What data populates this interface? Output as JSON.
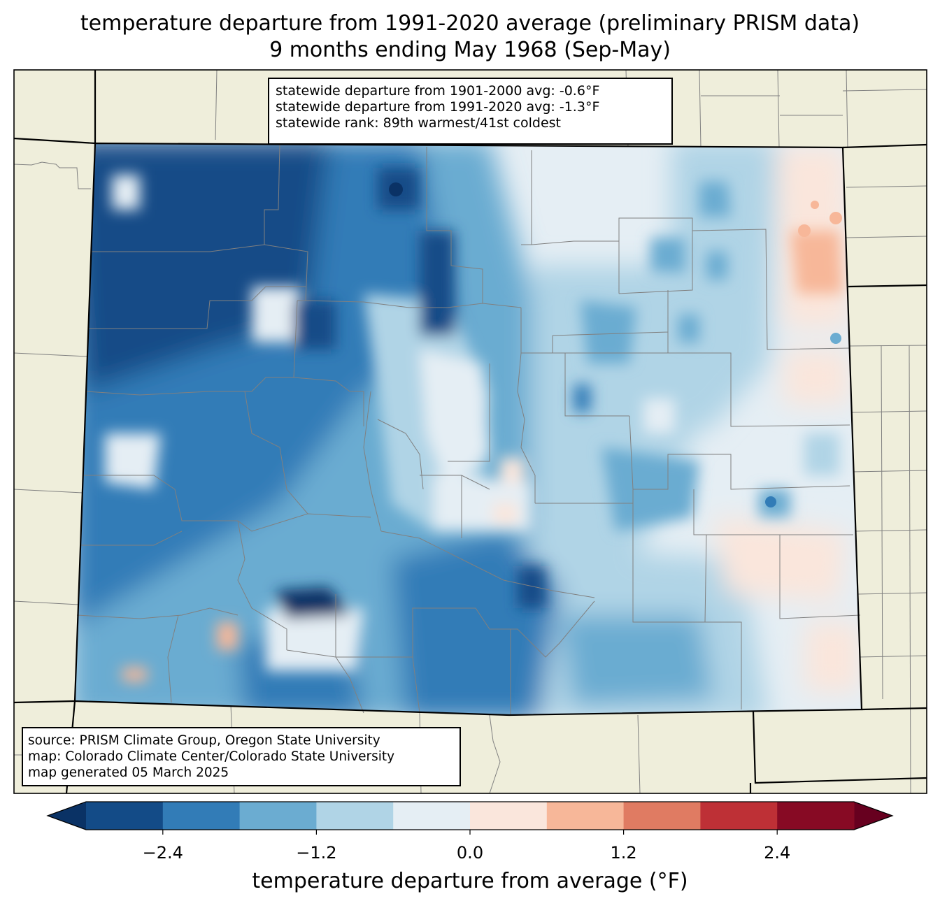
{
  "title": {
    "line1": "temperature departure from 1991-2020 average (preliminary PRISM data)",
    "line2": "9 months ending May 1968 (Sep-May)"
  },
  "stats_box": {
    "line1": "statewide departure from 1901-2000 avg: -0.6°F",
    "line2": "statewide departure from 1991-2020 avg: -1.3°F",
    "line3": "statewide rank: 89th warmest/41st coldest"
  },
  "source_box": {
    "line1": "source: PRISM Climate Group, Oregon State University",
    "line2": "map: Colorado Climate Center/Colorado State University",
    "line3": "map generated 05 March 2025"
  },
  "colorbar": {
    "label": "temperature departure from average (°F)",
    "ticks": [
      "−2.4",
      "−1.2",
      "0.0",
      "1.2",
      "2.4"
    ],
    "tick_values": [
      -2.4,
      -1.2,
      0.0,
      1.2,
      2.4
    ],
    "bounds": [
      -3.0,
      -2.4,
      -1.8,
      -1.2,
      -0.6,
      0.0,
      0.6,
      1.2,
      1.8,
      2.4,
      3.0
    ],
    "colors": [
      "#134b87",
      "#327cb7",
      "#6bacd1",
      "#b0d4e6",
      "#e5eef4",
      "#fae6dc",
      "#f7b799",
      "#e07b62",
      "#be3036",
      "#870a24"
    ],
    "under_color": "#0a3265",
    "over_color": "#67001f"
  },
  "map_colors": {
    "land": "#efeedb",
    "state_border": "#000000",
    "county_border": "#808080"
  }
}
